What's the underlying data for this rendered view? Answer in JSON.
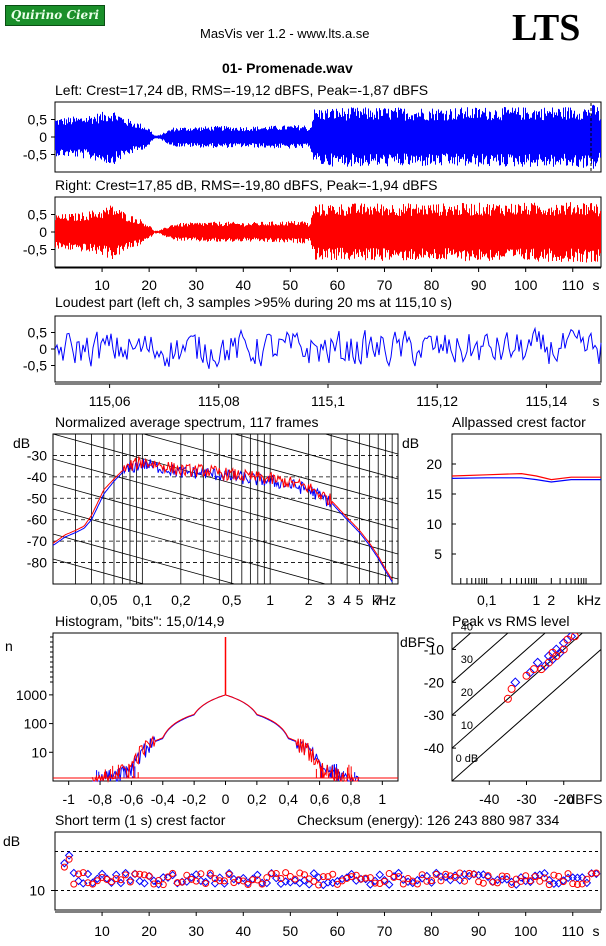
{
  "header": {
    "badge_text": "Quirino Cieri",
    "app_title": "MasVis ver 1.2 - www.lts.a.se",
    "logo_text": "LTS",
    "file_name": "01- Promenade.wav"
  },
  "colors": {
    "left": "#0000ff",
    "right": "#ff0000",
    "axis": "#000000"
  },
  "waveform_left": {
    "title": "Left: Crest=17,24 dB, RMS=-19,12 dBFS, Peak=-1,87 dBFS"
  },
  "waveform_right": {
    "title": "Right: Crest=17,85 dB, RMS=-19,80 dBFS, Peak=-1,94 dBFS"
  },
  "loudest": {
    "title": "Loudest part (left  ch, 3 samples >95% during 20 ms at 115,10 s)"
  },
  "spectrum": {
    "title": "Normalized average spectrum, 117 frames"
  },
  "allpass": {
    "title": "Allpassed crest factor"
  },
  "histogram": {
    "title": "Histogram, \"bits\": 15,0/14,9"
  },
  "peakrms": {
    "title": "Peak vs RMS level"
  },
  "shortterm": {
    "title": "Short term (1 s) crest factor",
    "checksum": "Checksum (energy):   126 243 880 987 334"
  },
  "chart_data": [
    {
      "type": "line",
      "id": "wave_left",
      "series": [
        {
          "name": "Left",
          "color": "#0000ff"
        }
      ],
      "ylim": [
        -1,
        1
      ],
      "yticks": [
        "0,5",
        "0",
        "-0,5"
      ],
      "xlim": [
        0,
        116
      ],
      "x_range_s": [
        0,
        116
      ],
      "envelope": {
        "x": [
          0,
          5,
          10,
          12,
          15,
          18,
          20,
          21,
          22,
          25,
          30,
          35,
          40,
          45,
          50,
          53,
          54,
          55,
          60,
          70,
          80,
          90,
          100,
          110,
          113,
          115,
          116
        ],
        "y": [
          0.55,
          0.6,
          0.72,
          0.82,
          0.55,
          0.4,
          0.25,
          0.05,
          0.05,
          0.28,
          0.3,
          0.32,
          0.3,
          0.32,
          0.34,
          0.35,
          0.25,
          0.82,
          0.85,
          0.85,
          0.85,
          0.86,
          0.86,
          0.88,
          0.9,
          0.95,
          0.6
        ]
      }
    },
    {
      "type": "line",
      "id": "wave_right",
      "series": [
        {
          "name": "Right",
          "color": "#ff0000"
        }
      ],
      "ylim": [
        -1,
        1
      ],
      "yticks": [
        "0,5",
        "0",
        "-0,5"
      ],
      "xticks": [
        "10",
        "20",
        "30",
        "40",
        "50",
        "60",
        "70",
        "80",
        "90",
        "100",
        "110"
      ],
      "xunit": "s",
      "x_range_s": [
        0,
        116
      ],
      "envelope": {
        "x": [
          0,
          5,
          10,
          12,
          15,
          18,
          20,
          21,
          22,
          25,
          30,
          35,
          40,
          45,
          50,
          53,
          54,
          55,
          60,
          70,
          80,
          90,
          100,
          110,
          113,
          115,
          116
        ],
        "y": [
          0.5,
          0.55,
          0.68,
          0.8,
          0.55,
          0.38,
          0.2,
          0.04,
          0.04,
          0.25,
          0.28,
          0.3,
          0.28,
          0.3,
          0.32,
          0.33,
          0.22,
          0.8,
          0.82,
          0.83,
          0.82,
          0.84,
          0.84,
          0.86,
          0.88,
          0.9,
          0.55
        ]
      }
    },
    {
      "type": "line",
      "id": "loudest_part",
      "series": [
        {
          "name": "Left",
          "color": "#0000ff"
        }
      ],
      "ylim": [
        -1,
        1
      ],
      "yticks": [
        "0,5",
        "0",
        "-0,5"
      ],
      "xlim": [
        115.05,
        115.15
      ],
      "xticks": [
        "115,06",
        "115,08",
        "115,1",
        "115,12",
        "115,14"
      ],
      "xunit": "s",
      "amplitude": 0.5
    },
    {
      "type": "line",
      "id": "avg_spectrum",
      "xscale": "log",
      "xlim_khz": [
        0.02,
        10
      ],
      "ylim_db": [
        -90,
        -20
      ],
      "xticks": [
        "0,05",
        "0,1",
        "0,2",
        "0,5",
        "1",
        "2",
        "3",
        "4",
        "5",
        "7"
      ],
      "xunit": "kHz",
      "yticks": [
        "-30",
        "-40",
        "-50",
        "-60",
        "-70",
        "-80"
      ],
      "ylabel": "dB",
      "series": [
        {
          "name": "Left",
          "color": "#0000ff",
          "f_khz": [
            0.02,
            0.025,
            0.03,
            0.035,
            0.04,
            0.05,
            0.06,
            0.07,
            0.08,
            0.1,
            0.15,
            0.2,
            0.3,
            0.5,
            0.7,
            1,
            1.5,
            2,
            3,
            4,
            5,
            6,
            7,
            8,
            9
          ],
          "db": [
            -72,
            -68,
            -66,
            -64,
            -60,
            -48,
            -42,
            -38,
            -36,
            -34,
            -36,
            -38,
            -38,
            -40,
            -41,
            -42,
            -44,
            -46,
            -52,
            -60,
            -66,
            -72,
            -78,
            -84,
            -89
          ]
        },
        {
          "name": "Right",
          "color": "#ff0000",
          "f_khz": [
            0.02,
            0.025,
            0.03,
            0.035,
            0.04,
            0.05,
            0.06,
            0.07,
            0.08,
            0.1,
            0.15,
            0.2,
            0.3,
            0.5,
            0.7,
            1,
            1.5,
            2,
            3,
            4,
            5,
            6,
            7,
            8,
            9
          ],
          "db": [
            -71,
            -67,
            -65,
            -63,
            -58,
            -46,
            -41,
            -37,
            -35,
            -33,
            -35,
            -37,
            -37,
            -39,
            -40,
            -41,
            -43,
            -45,
            -51,
            -59,
            -65,
            -71,
            -77,
            -83,
            -88
          ]
        }
      ]
    },
    {
      "type": "line",
      "id": "allpassed_crest",
      "xscale": "log",
      "xlim_khz": [
        0.02,
        20
      ],
      "ylim_db": [
        0,
        25
      ],
      "xticks": [
        "0,1",
        "1",
        "2"
      ],
      "xunit": "kHz",
      "yticks": [
        "20",
        "15",
        "10",
        "5"
      ],
      "ylabel": "dB",
      "series": [
        {
          "name": "Left",
          "color": "#0000ff",
          "f_khz": [
            0.02,
            0.1,
            0.5,
            1,
            2,
            5,
            20
          ],
          "db": [
            17.6,
            17.7,
            17.7,
            17.4,
            17.0,
            17.4,
            17.4
          ]
        },
        {
          "name": "Right",
          "color": "#ff0000",
          "f_khz": [
            0.02,
            0.1,
            0.5,
            1,
            2,
            5,
            20
          ],
          "db": [
            18.0,
            18.2,
            18.4,
            18.0,
            17.4,
            17.8,
            17.8
          ]
        }
      ]
    },
    {
      "type": "line",
      "id": "histogram",
      "yscale": "log",
      "xlim": [
        -1.1,
        1.1
      ],
      "ylim": [
        1,
        100000
      ],
      "xticks": [
        "-1",
        "-0,8",
        "-0,6",
        "-0,4",
        "-0,2",
        "0",
        "0,2",
        "0,4",
        "0,6",
        "0,8",
        "1"
      ],
      "yticks": [
        "1000",
        "100",
        "10"
      ],
      "ylabel": "n",
      "series": [
        {
          "name": "Left",
          "color": "#0000ff",
          "x": [
            -0.8,
            -0.6,
            -0.4,
            -0.2,
            0,
            0.2,
            0.4,
            0.6,
            0.8
          ],
          "n": [
            1,
            3,
            30,
            200,
            1000,
            200,
            30,
            3,
            1
          ]
        },
        {
          "name": "Right",
          "color": "#ff0000",
          "x": [
            -0.8,
            -0.6,
            -0.4,
            -0.2,
            0,
            0.2,
            0.4,
            0.6,
            0.8
          ],
          "n": [
            1,
            3,
            32,
            210,
            1000,
            210,
            32,
            3,
            1
          ]
        }
      ]
    },
    {
      "type": "scatter",
      "id": "peak_vs_rms",
      "xlim": [
        -50,
        -10
      ],
      "ylim": [
        -50,
        -5
      ],
      "xticks": [
        "-40",
        "-30",
        "-20"
      ],
      "xunit": "dBFS",
      "yticks": [
        "-10",
        "-20",
        "-30",
        "-40"
      ],
      "ylabel": "dBFS",
      "diagonals": [
        "40",
        "30",
        "20",
        "10",
        "0 dB"
      ],
      "series": [
        {
          "name": "Left",
          "color": "#0000ff",
          "points": [
            [
              -33,
              -20
            ],
            [
              -29,
              -17
            ],
            [
              -24,
              -12
            ],
            [
              -22,
              -10
            ],
            [
              -20,
              -8
            ],
            [
              -18,
              -6
            ],
            [
              -25,
              -15
            ],
            [
              -27,
              -14
            ],
            [
              -21,
              -11
            ],
            [
              -23,
              -13
            ]
          ]
        },
        {
          "name": "Right",
          "color": "#ff0000",
          "points": [
            [
              -35,
              -25
            ],
            [
              -34,
              -22
            ],
            [
              -30,
              -18
            ],
            [
              -26,
              -16
            ],
            [
              -24,
              -14
            ],
            [
              -22,
              -12
            ],
            [
              -20,
              -10
            ],
            [
              -19,
              -7
            ],
            [
              -17,
              -6
            ],
            [
              -28,
              -16
            ],
            [
              -23,
              -11
            ]
          ]
        }
      ]
    },
    {
      "type": "scatter",
      "id": "short_term_crest",
      "xlim": [
        0,
        116
      ],
      "ylim": [
        5,
        25
      ],
      "xticks": [
        "10",
        "20",
        "30",
        "40",
        "50",
        "60",
        "70",
        "80",
        "90",
        "100",
        "110"
      ],
      "xunit": "s",
      "yticks": [
        "10"
      ],
      "ylabel": "dB",
      "dashed_lines_db": [
        20,
        10
      ],
      "series": [
        {
          "name": "Left",
          "color": "#0000ff",
          "mean_db": 13,
          "first_points": [
            [
              2,
              17
            ],
            [
              3,
              19
            ]
          ]
        },
        {
          "name": "Right",
          "color": "#ff0000",
          "mean_db": 13,
          "first_points": [
            [
              2,
              16
            ],
            [
              3,
              18
            ]
          ]
        }
      ]
    }
  ]
}
